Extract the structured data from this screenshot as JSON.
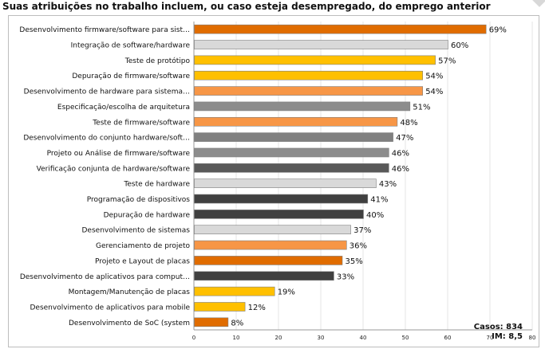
{
  "header": {
    "title": "Suas atribuições no trabalho incluem, ou caso esteja desempregado, do emprego anterior"
  },
  "stats": {
    "cases": "Casos: 834",
    "im": "IM: 8,5"
  },
  "chart_data": {
    "type": "bar",
    "orientation": "horizontal",
    "categories": [
      "Desenvolvimento firmware/software para sist…",
      "Integração de software/hardware",
      "Teste de protótipo",
      "Depuração de firmware/software",
      "Desenvolvimento de hardware para sistema…",
      "Especificação/escolha de arquitetura",
      "Teste de firmware/software",
      "Desenvolvimento do conjunto hardware/soft…",
      "Projeto ou Análise de firmware/software",
      "Verificação conjunta de hardware/software",
      "Teste de hardware",
      "Programação de dispositivos",
      "Depuração de hardware",
      "Desenvolvimento de sistemas",
      "Gerenciamento de projeto",
      "Projeto e Layout de placas",
      "Desenvolvimento de aplicativos para comput…",
      "Montagem/Manutenção de placas",
      "Desenvolvimento de aplicativos para mobile",
      "Desenvolvimento de SoC (system"
    ],
    "values": [
      69,
      60,
      57,
      54,
      54,
      51,
      48,
      47,
      46,
      46,
      43,
      41,
      40,
      37,
      36,
      35,
      33,
      19,
      12,
      8
    ],
    "value_labels": [
      "69%",
      "60%",
      "57%",
      "54%",
      "54%",
      "51%",
      "48%",
      "47%",
      "46%",
      "46%",
      "43%",
      "41%",
      "40%",
      "37%",
      "36%",
      "35%",
      "33%",
      "19%",
      "12%",
      "8%"
    ],
    "colors": [
      "#e06c00",
      "#d9d9d9",
      "#ffc000",
      "#ffc000",
      "#f79646",
      "#8c8c8c",
      "#f79646",
      "#808080",
      "#8c8c8c",
      "#595959",
      "#d9d9d9",
      "#404040",
      "#404040",
      "#d9d9d9",
      "#f79646",
      "#e06c00",
      "#404040",
      "#ffc000",
      "#ffc000",
      "#e06c00"
    ],
    "xlim": [
      0,
      80
    ],
    "xticks": [
      0,
      10,
      20,
      30,
      40,
      50,
      60,
      70,
      80
    ],
    "title": "Suas atribuições no trabalho incluem, ou caso esteja desempregado, do emprego anterior",
    "xlabel": "",
    "ylabel": "",
    "grid": true
  }
}
